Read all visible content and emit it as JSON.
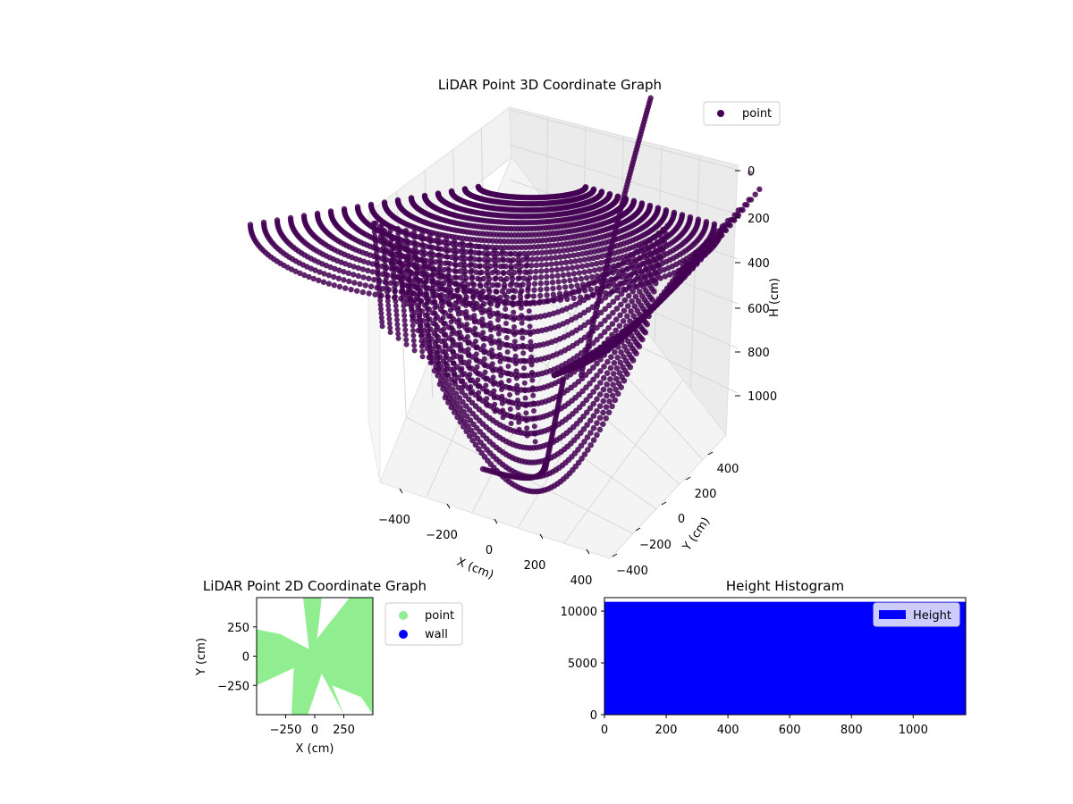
{
  "figure_bg": "#ffffff",
  "chart_data": [
    {
      "type": "scatter",
      "projection": "3d",
      "title": "LiDAR Point 3D Coordinate Graph",
      "xlabel": "X (cm)",
      "ylabel": "Y (cm)",
      "zlabel": "H (cm)",
      "x_ticks": [
        "−400",
        "−200",
        "0",
        "200",
        "400"
      ],
      "y_ticks": [
        "−400",
        "−200",
        "0",
        "200",
        "400"
      ],
      "z_ticks": [
        "0",
        "200",
        "400",
        "600",
        "800",
        "1000"
      ],
      "xlim": [
        -450,
        450
      ],
      "ylim": [
        -450,
        450
      ],
      "zlim": [
        0,
        1100
      ],
      "z_inverted": true,
      "series": [
        {
          "name": "point",
          "color": "#440154",
          "shape": "dense curved point trails forming a bowl / scan arcs"
        }
      ],
      "legend": {
        "position": "top-right",
        "entries": [
          "point"
        ]
      }
    },
    {
      "type": "scatter",
      "title": "LiDAR Point 2D Coordinate Graph",
      "xlabel": "X (cm)",
      "ylabel": "Y (cm)",
      "x_ticks": [
        "−250",
        "0",
        "250"
      ],
      "y_ticks": [
        "250",
        "0",
        "−250"
      ],
      "xlim": [
        -500,
        500
      ],
      "ylim": [
        -500,
        500
      ],
      "series": [
        {
          "name": "point",
          "color": "#90ee90"
        },
        {
          "name": "wall",
          "color": "#0000ff"
        }
      ],
      "legend": {
        "position": "outside-right",
        "entries": [
          "point",
          "wall"
        ]
      }
    },
    {
      "type": "bar",
      "subtype": "histogram",
      "title": "Height Histogram",
      "x_ticks": [
        "0",
        "200",
        "400",
        "600",
        "800",
        "1000"
      ],
      "y_ticks": [
        "0",
        "5000",
        "10000"
      ],
      "xlim": [
        0,
        1170
      ],
      "ylim": [
        0,
        11300
      ],
      "series": [
        {
          "name": "Height",
          "color": "#0000ff",
          "bins": [
            [
              0,
              1170,
              10900
            ]
          ]
        }
      ],
      "legend": {
        "position": "top-right",
        "entries": [
          "Height"
        ]
      }
    }
  ]
}
